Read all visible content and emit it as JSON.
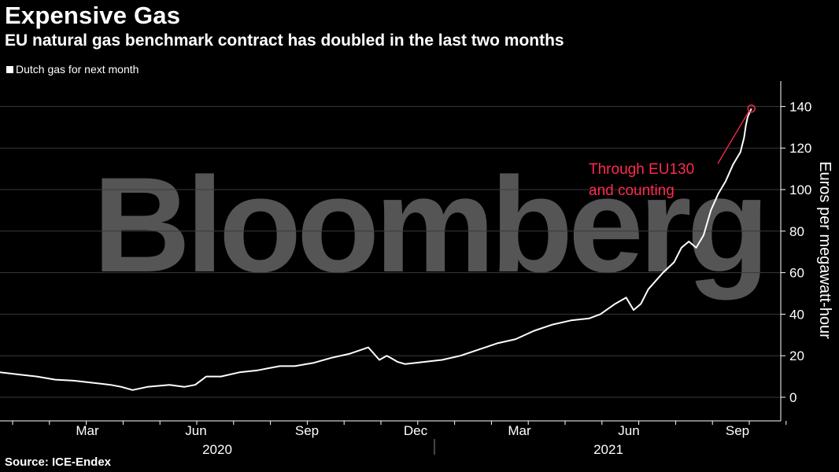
{
  "header": {
    "title": "Expensive Gas",
    "subtitle": "EU natural gas benchmark contract has doubled in the last two months"
  },
  "legend": {
    "label": "Dutch gas for next month"
  },
  "watermark": "Bloomberg",
  "source": "Source: ICE-Endex",
  "colors": {
    "line": "#ffffff",
    "annotation": "#ff2a4d",
    "grid": "#3a3a3a",
    "watermark": "#555555"
  },
  "chart_data": {
    "type": "line",
    "title": "Expensive Gas",
    "series": [
      {
        "name": "Dutch gas for next month",
        "x": [
          0,
          0.5,
          1,
          1.5,
          2,
          2.5,
          3,
          3.3,
          3.6,
          4,
          4.3,
          4.6,
          5,
          5.3,
          5.6,
          6,
          6.5,
          7,
          7.3,
          7.6,
          8,
          8.5,
          9,
          9.5,
          10,
          10.3,
          10.5,
          10.6,
          10.8,
          11,
          11.5,
          12,
          12.5,
          13,
          13.5,
          14,
          14.5,
          15,
          15.5,
          16,
          16.3,
          16.7,
          17,
          17.2,
          17.4,
          17.6,
          17.8,
          18,
          18.3,
          18.5,
          18.7,
          18.9,
          19.1,
          19.3,
          19.5,
          19.7,
          19.9,
          20.1,
          20.2,
          20.25,
          20.3,
          20.4
        ],
        "y": [
          12,
          11,
          10,
          8.5,
          8,
          7,
          6,
          5,
          3.5,
          5,
          5.5,
          6,
          5,
          6,
          10,
          10,
          12,
          13,
          14,
          15,
          15,
          16.5,
          19,
          21,
          24,
          18,
          20,
          19,
          17,
          16,
          17,
          18,
          20,
          23,
          26,
          28,
          32,
          35,
          37,
          38,
          40,
          45,
          48,
          42,
          45,
          52,
          56,
          60,
          65,
          72,
          75,
          72,
          78,
          90,
          98,
          104,
          112,
          118,
          125,
          131,
          135,
          139
        ]
      }
    ],
    "x_ticks": {
      "months": [
        "Mar",
        "Jun",
        "Sep",
        "Dec",
        "Mar",
        "Jun",
        "Sep"
      ],
      "years": [
        "2020",
        "2021"
      ]
    },
    "yticks": [
      0,
      20,
      40,
      60,
      80,
      100,
      120,
      140
    ],
    "ylabel": "Euros per megawatt-hour",
    "ylim": [
      -10,
      150
    ],
    "annotation": {
      "text_line1": "Through EU130",
      "text_line2": "and counting",
      "x": 20.4,
      "y": 139
    }
  }
}
